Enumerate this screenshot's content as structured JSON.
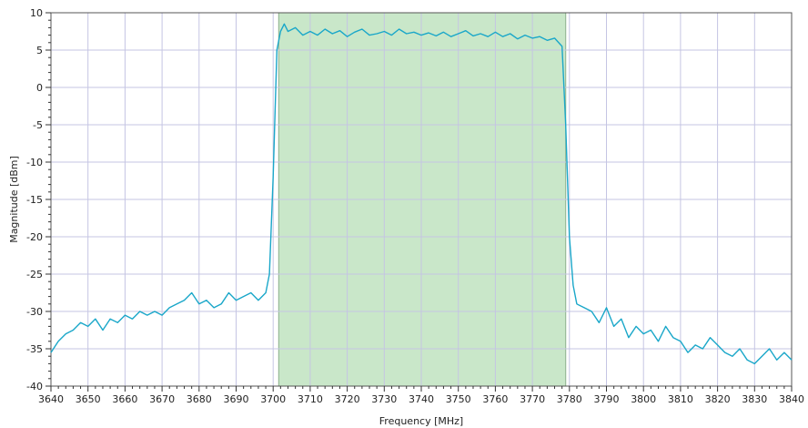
{
  "chart_data": {
    "type": "line",
    "title": "",
    "xlabel": "Frequency [MHz]",
    "ylabel": "Magnitude [dBm]",
    "xlim": [
      3640,
      3840
    ],
    "ylim": [
      -40,
      10
    ],
    "grid": true,
    "x_ticks": [
      "3640",
      "3650",
      "3660",
      "3670",
      "3680",
      "3690",
      "3700",
      "3710",
      "3720",
      "3730",
      "3740",
      "3750",
      "3760",
      "3770",
      "3780",
      "3790",
      "3800",
      "3810",
      "3820",
      "3830",
      "3840"
    ],
    "y_ticks": [
      "10",
      "5",
      "0",
      "-5",
      "-10",
      "-15",
      "-20",
      "-25",
      "-30",
      "-35",
      "-40"
    ],
    "highlight_band": {
      "x_start": 3701.5,
      "x_end": 3779,
      "color": "#bfe3bf"
    },
    "series": [
      {
        "color": "#1aa7c9",
        "points": [
          [
            3640,
            -35.5
          ],
          [
            3642,
            -34.0
          ],
          [
            3644,
            -33.0
          ],
          [
            3646,
            -32.5
          ],
          [
            3648,
            -31.5
          ],
          [
            3650,
            -32.0
          ],
          [
            3652,
            -31.0
          ],
          [
            3654,
            -32.5
          ],
          [
            3656,
            -31.0
          ],
          [
            3658,
            -31.5
          ],
          [
            3660,
            -30.5
          ],
          [
            3662,
            -31.0
          ],
          [
            3664,
            -30.0
          ],
          [
            3666,
            -30.5
          ],
          [
            3668,
            -30.0
          ],
          [
            3670,
            -30.5
          ],
          [
            3672,
            -29.5
          ],
          [
            3674,
            -29.0
          ],
          [
            3676,
            -28.5
          ],
          [
            3678,
            -27.5
          ],
          [
            3680,
            -29.0
          ],
          [
            3682,
            -28.5
          ],
          [
            3684,
            -29.5
          ],
          [
            3686,
            -29.0
          ],
          [
            3688,
            -27.5
          ],
          [
            3690,
            -28.5
          ],
          [
            3692,
            -28.0
          ],
          [
            3694,
            -27.5
          ],
          [
            3696,
            -28.5
          ],
          [
            3698,
            -27.5
          ],
          [
            3699,
            -25.0
          ],
          [
            3700,
            -12.0
          ],
          [
            3701,
            5.0
          ],
          [
            3702,
            7.5
          ],
          [
            3703,
            8.5
          ],
          [
            3704,
            7.5
          ],
          [
            3706,
            8.0
          ],
          [
            3708,
            7.0
          ],
          [
            3710,
            7.5
          ],
          [
            3712,
            7.0
          ],
          [
            3714,
            7.8
          ],
          [
            3716,
            7.2
          ],
          [
            3718,
            7.6
          ],
          [
            3720,
            6.8
          ],
          [
            3722,
            7.4
          ],
          [
            3724,
            7.8
          ],
          [
            3726,
            7.0
          ],
          [
            3728,
            7.2
          ],
          [
            3730,
            7.5
          ],
          [
            3732,
            7.0
          ],
          [
            3734,
            7.8
          ],
          [
            3736,
            7.2
          ],
          [
            3738,
            7.4
          ],
          [
            3740,
            7.0
          ],
          [
            3742,
            7.3
          ],
          [
            3744,
            6.9
          ],
          [
            3746,
            7.4
          ],
          [
            3748,
            6.8
          ],
          [
            3750,
            7.2
          ],
          [
            3752,
            7.6
          ],
          [
            3754,
            6.9
          ],
          [
            3756,
            7.2
          ],
          [
            3758,
            6.8
          ],
          [
            3760,
            7.4
          ],
          [
            3762,
            6.8
          ],
          [
            3764,
            7.2
          ],
          [
            3766,
            6.5
          ],
          [
            3768,
            7.0
          ],
          [
            3770,
            6.6
          ],
          [
            3772,
            6.8
          ],
          [
            3774,
            6.3
          ],
          [
            3776,
            6.6
          ],
          [
            3778,
            5.5
          ],
          [
            3779,
            -5.0
          ],
          [
            3780,
            -20.0
          ],
          [
            3781,
            -26.5
          ],
          [
            3782,
            -29.0
          ],
          [
            3784,
            -29.5
          ],
          [
            3786,
            -30.0
          ],
          [
            3788,
            -31.5
          ],
          [
            3790,
            -29.5
          ],
          [
            3792,
            -32.0
          ],
          [
            3794,
            -31.0
          ],
          [
            3796,
            -33.5
          ],
          [
            3798,
            -32.0
          ],
          [
            3800,
            -33.0
          ],
          [
            3802,
            -32.5
          ],
          [
            3804,
            -34.0
          ],
          [
            3806,
            -32.0
          ],
          [
            3808,
            -33.5
          ],
          [
            3810,
            -34.0
          ],
          [
            3812,
            -35.5
          ],
          [
            3814,
            -34.5
          ],
          [
            3816,
            -35.0
          ],
          [
            3818,
            -33.5
          ],
          [
            3820,
            -34.5
          ],
          [
            3822,
            -35.5
          ],
          [
            3824,
            -36.0
          ],
          [
            3826,
            -35.0
          ],
          [
            3828,
            -36.5
          ],
          [
            3830,
            -37.0
          ],
          [
            3832,
            -36.0
          ],
          [
            3834,
            -35.0
          ],
          [
            3836,
            -36.5
          ],
          [
            3838,
            -35.5
          ],
          [
            3840,
            -36.5
          ]
        ]
      }
    ]
  }
}
